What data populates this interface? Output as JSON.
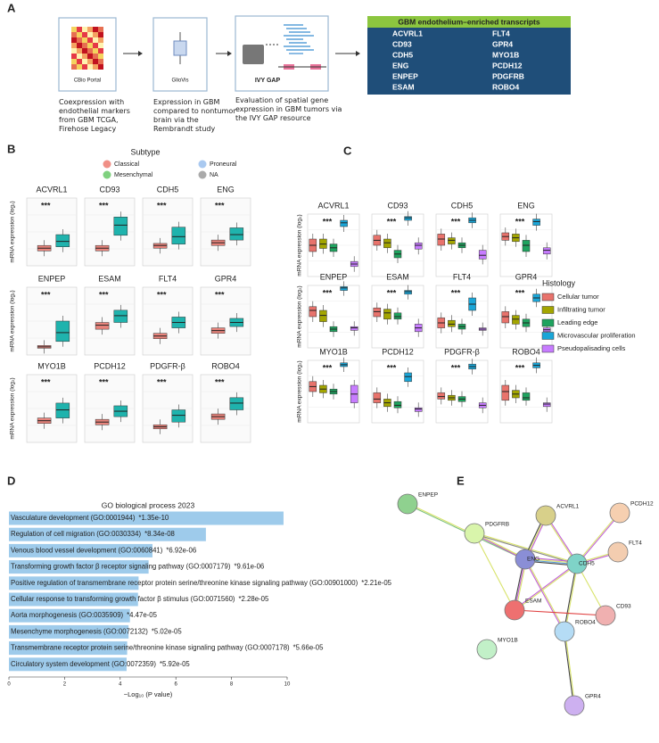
{
  "panel_labels": [
    "A",
    "B",
    "C",
    "D",
    "E"
  ],
  "panel_a": {
    "steps": [
      {
        "label": "CBio Portal",
        "caption": "Coexpression with endothelial markers from GBM TCGA, Firehose Legacy"
      },
      {
        "label": "GlioVis",
        "caption": "Expression in GBM compared to nontumor brain via the Rembrandt study"
      },
      {
        "label": "IVY GAP",
        "caption": "Evaluation of spatial gene expression in GBM tumors via the IVY GAP resource"
      }
    ],
    "table": {
      "title": "GBM endothelium–enriched transcripts",
      "rows": [
        [
          "ACVRL1",
          "FLT4"
        ],
        [
          "CD93",
          "GPR4"
        ],
        [
          "CDH5",
          "MYO1B"
        ],
        [
          "ENG",
          "PCDH12"
        ],
        [
          "ENPEP",
          "PDGFRB"
        ],
        [
          "ESAM",
          "ROBO4"
        ]
      ]
    }
  },
  "chart_data": [
    {
      "type": "box",
      "ylabel": "mRNA expression (log₂)",
      "ylim": [
        0,
        10
      ],
      "box_colors": [
        "#e8837b",
        "#1fb3ad"
      ],
      "legend_title": "Subtype",
      "legend": [
        {
          "name": "Classical",
          "color": "#f08f86"
        },
        {
          "name": "Proneural",
          "color": "#a9c9f0"
        },
        {
          "name": "Mesenchymal",
          "color": "#7fd17f"
        },
        {
          "name": "NA",
          "color": "#aaaaaa"
        }
      ],
      "panels": [
        {
          "title": "ACVRL1",
          "annotation": "***",
          "boxes": [
            [
              2.2,
              2.6,
              3.0
            ],
            [
              2.8,
              3.6,
              4.6
            ]
          ]
        },
        {
          "title": "CD93",
          "annotation": "***",
          "boxes": [
            [
              2.2,
              2.6,
              3.0
            ],
            [
              4.5,
              6.0,
              7.2
            ]
          ]
        },
        {
          "title": "CDH5",
          "annotation": "***",
          "boxes": [
            [
              2.6,
              3.0,
              3.3
            ],
            [
              3.2,
              4.3,
              5.7
            ]
          ]
        },
        {
          "title": "ENG",
          "annotation": "***",
          "boxes": [
            [
              3.0,
              3.4,
              3.8
            ],
            [
              3.8,
              4.6,
              5.6
            ]
          ]
        },
        {
          "title": "ENPEP",
          "annotation": "***",
          "boxes": [
            [
              1.0,
              1.2,
              1.4
            ],
            [
              2.0,
              3.3,
              5.0
            ]
          ]
        },
        {
          "title": "ESAM",
          "annotation": "***",
          "boxes": [
            [
              3.8,
              4.4,
              4.8
            ],
            [
              4.8,
              5.8,
              6.6
            ]
          ]
        },
        {
          "title": "FLT4",
          "annotation": "***",
          "boxes": [
            [
              2.4,
              2.8,
              3.2
            ],
            [
              4.0,
              4.8,
              5.6
            ]
          ]
        },
        {
          "title": "GPR4",
          "annotation": "***",
          "boxes": [
            [
              3.2,
              3.6,
              4.0
            ],
            [
              4.2,
              4.8,
              5.4
            ]
          ]
        },
        {
          "title": "MYO1B",
          "annotation": "***",
          "boxes": [
            [
              2.8,
              3.2,
              3.6
            ],
            [
              3.6,
              4.8,
              5.8
            ]
          ]
        },
        {
          "title": "PCDH12",
          "annotation": "***",
          "boxes": [
            [
              2.6,
              3.0,
              3.4
            ],
            [
              3.8,
              4.6,
              5.4
            ]
          ]
        },
        {
          "title": "PDGFR-β",
          "annotation": "***",
          "boxes": [
            [
              2.0,
              2.3,
              2.6
            ],
            [
              3.0,
              4.0,
              4.8
            ]
          ]
        },
        {
          "title": "ROBO4",
          "annotation": "***",
          "boxes": [
            [
              3.4,
              3.8,
              4.2
            ],
            [
              4.8,
              5.8,
              6.6
            ]
          ]
        }
      ]
    },
    {
      "type": "box",
      "ylabel": "mRNA expression (log₂)",
      "ylim": [
        0,
        10
      ],
      "legend_title": "Histology",
      "series": [
        {
          "name": "Cellular tumor",
          "color": "#e8736c"
        },
        {
          "name": "Infiltrating tumor",
          "color": "#a3a500"
        },
        {
          "name": "Leading edge",
          "color": "#1fa35f"
        },
        {
          "name": "Microvascular proliferation",
          "color": "#1aa6d8"
        },
        {
          "name": "Pseudopalisading cells",
          "color": "#c77cff"
        }
      ],
      "panels": [
        {
          "title": "ACVRL1",
          "annotation": "***",
          "boxes": [
            [
              4,
              5,
              6
            ],
            [
              4.5,
              5.2,
              6
            ],
            [
              4,
              4.6,
              5.2
            ],
            [
              8,
              8.6,
              9
            ],
            [
              1.6,
              2,
              2.4
            ]
          ]
        },
        {
          "title": "CD93",
          "annotation": "***",
          "boxes": [
            [
              5,
              5.8,
              6.6
            ],
            [
              4.6,
              5.4,
              6
            ],
            [
              3,
              3.6,
              4.2
            ],
            [
              9,
              9.4,
              9.6
            ],
            [
              4.4,
              5,
              5.4
            ]
          ]
        },
        {
          "title": "CDH5",
          "annotation": "***",
          "boxes": [
            [
              5,
              6,
              6.8
            ],
            [
              5.2,
              5.8,
              6.2
            ],
            [
              4.6,
              5,
              5.4
            ],
            [
              8.6,
              9,
              9.4
            ],
            [
              2.8,
              3.4,
              4.2
            ]
          ]
        },
        {
          "title": "ENG",
          "annotation": "***",
          "boxes": [
            [
              5.8,
              6.4,
              7
            ],
            [
              5.6,
              6.2,
              6.8
            ],
            [
              4,
              5,
              5.8
            ],
            [
              8.2,
              8.8,
              9.2
            ],
            [
              3.6,
              4.2,
              4.6
            ]
          ]
        },
        {
          "title": "ENPEP",
          "annotation": "***",
          "boxes": [
            [
              5,
              6,
              6.6
            ],
            [
              4.2,
              5.2,
              6
            ],
            [
              2.6,
              3,
              3.4
            ],
            [
              9.2,
              9.6,
              9.8
            ],
            [
              2.8,
              3.2,
              3.4
            ]
          ]
        },
        {
          "title": "ESAM",
          "annotation": "***",
          "boxes": [
            [
              5,
              5.8,
              6.4
            ],
            [
              4.6,
              5.6,
              6.2
            ],
            [
              4.6,
              5,
              5.6
            ],
            [
              8.6,
              9,
              9.2
            ],
            [
              2.6,
              3.2,
              3.8
            ]
          ]
        },
        {
          "title": "FLT4",
          "annotation": "***",
          "boxes": [
            [
              3.2,
              4,
              4.8
            ],
            [
              3.4,
              3.8,
              4.4
            ],
            [
              3,
              3.4,
              3.8
            ],
            [
              6,
              7,
              8
            ],
            [
              2.8,
              3,
              3.2
            ]
          ]
        },
        {
          "title": "GPR4",
          "annotation": "***",
          "boxes": [
            [
              4,
              5,
              5.8
            ],
            [
              3.8,
              4.6,
              5.2
            ],
            [
              3.4,
              4,
              4.6
            ],
            [
              7.4,
              8,
              8.6
            ],
            [
              2.6,
              2.9,
              3.2
            ]
          ]
        },
        {
          "title": "MYO1B",
          "annotation": "***",
          "boxes": [
            [
              5,
              5.8,
              6.6
            ],
            [
              4.8,
              5.4,
              6
            ],
            [
              4.6,
              5,
              5.4
            ],
            [
              9,
              9.3,
              9.6
            ],
            [
              3.2,
              4.6,
              6
            ]
          ]
        },
        {
          "title": "PCDH12",
          "annotation": "***",
          "boxes": [
            [
              3.2,
              3.8,
              4.8
            ],
            [
              2.6,
              3.2,
              3.8
            ],
            [
              2.4,
              2.8,
              3.4
            ],
            [
              6.6,
              7.4,
              8
            ],
            [
              1.8,
              2.2,
              2.4
            ]
          ]
        },
        {
          "title": "PDGFR-β",
          "annotation": "***",
          "boxes": [
            [
              3.8,
              4.2,
              4.8
            ],
            [
              3.6,
              4,
              4.4
            ],
            [
              3.4,
              3.8,
              4.2
            ],
            [
              8.6,
              9,
              9.4
            ],
            [
              2.4,
              2.8,
              3.2
            ]
          ]
        },
        {
          "title": "ROBO4",
          "annotation": "***",
          "boxes": [
            [
              3.6,
              5,
              6
            ],
            [
              4,
              4.6,
              5.2
            ],
            [
              3.6,
              4,
              4.8
            ],
            [
              8.8,
              9.2,
              9.6
            ],
            [
              2.6,
              3,
              3.2
            ]
          ]
        }
      ]
    },
    {
      "type": "bar",
      "orientation": "horizontal",
      "title": "GO biological process 2023",
      "xlabel": "−Log₁₀ (P value)",
      "categories": [
        "Vasculature development (GO:0001944)",
        "Regulation of cell migration (GO:0030334)",
        "Venous blood vessel development (GO:0060841)",
        "Transforming growth factor β receptor signaling pathway (GO:0007179)",
        "Positive regulation of transmembrane receptor protein serine/threonine kinase signaling pathway (GO:00901000)",
        "Cellular response to transforming growth factor β stimulus (GO:0071560)",
        "Aorta morphogenesis (GO:0035909)",
        "Mesenchyme morphogenesis (GO:0072132)",
        "Transmembrane receptor protein serine/threonine kinase signaling pathway (GO:0007178)",
        "Circulatory system development (GO:0072359)"
      ],
      "values": [
        9.87,
        7.08,
        5.16,
        5.02,
        4.66,
        4.64,
        4.35,
        4.3,
        4.25,
        4.23
      ],
      "p_value_labels": [
        "*1.35e-10",
        "*8.34e-08",
        "*6.92e-06",
        "*9.61e-06",
        "*2.21e-05",
        "*2.28e-05",
        "*4.47e-05",
        "*5.02e-05",
        "*5.66e-05",
        "*5.92e-05"
      ],
      "color": "#9ecbeb",
      "xlim": [
        0,
        10
      ],
      "xticks": [
        0,
        2,
        4,
        6,
        8,
        10
      ]
    }
  ],
  "network": {
    "nodes": [
      {
        "label": "ENPEP",
        "color": "#8fd18f"
      },
      {
        "label": "PDGFRB",
        "color": "#d9f5ab"
      },
      {
        "label": "ACVRL1",
        "color": "#d8d08a"
      },
      {
        "label": "PCDH12",
        "color": "#f6cfb0"
      },
      {
        "label": "FLT4",
        "color": "#f3cdb0"
      },
      {
        "label": "ENG",
        "color": "#8a8ed6"
      },
      {
        "label": "CDH5",
        "color": "#7fd3c8"
      },
      {
        "label": "CD93",
        "color": "#f0b0b0"
      },
      {
        "label": "ESAM",
        "color": "#ee7070"
      },
      {
        "label": "ROBO4",
        "color": "#b5dcf5"
      },
      {
        "label": "MYO1B",
        "color": "#c2f0c8"
      },
      {
        "label": "GPR4",
        "color": "#cdb0f0"
      }
    ]
  }
}
